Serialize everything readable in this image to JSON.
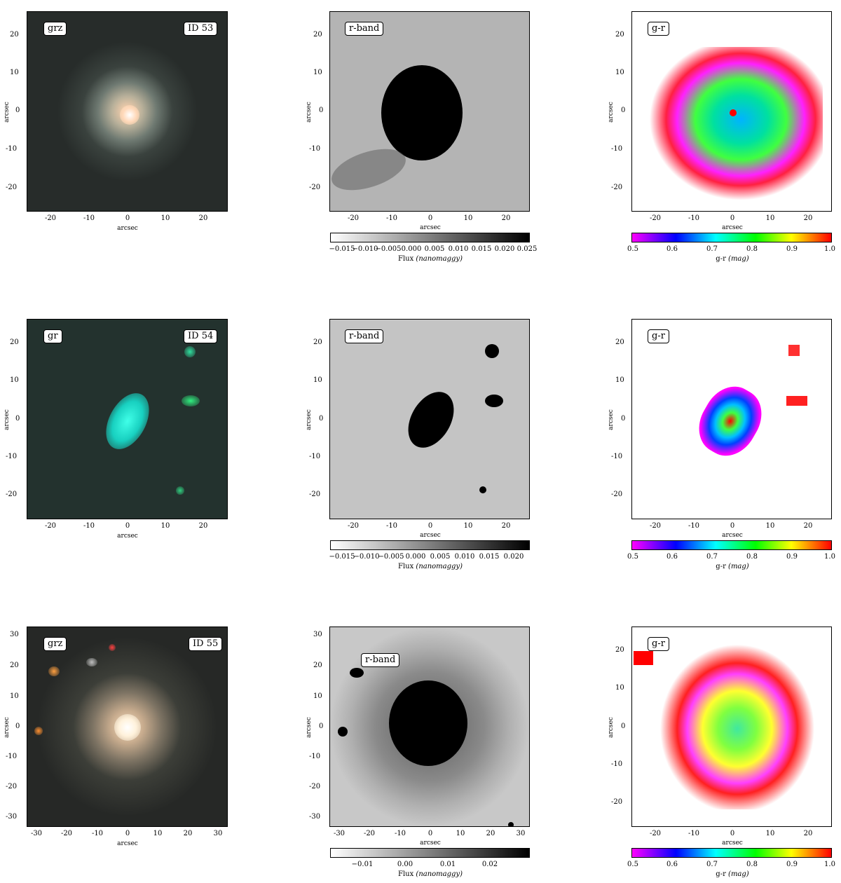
{
  "rows": [
    {
      "id_label": "ID 53",
      "bands_label": "grz",
      "rband_label": "r-band",
      "color_label": "g-r",
      "axis_label": "arcsec",
      "ticks": [
        "-20",
        "-10",
        "0",
        "10",
        "20"
      ],
      "flux_ticks": [
        "−0.015",
        "−0.010",
        "−0.005",
        "0.000",
        "0.005",
        "0.010",
        "0.015",
        "0.020",
        "0.025"
      ],
      "flux_label": "Flux",
      "flux_unit": "(nanomaggy)",
      "gr_ticks": [
        "0.5",
        "0.6",
        "0.7",
        "0.8",
        "0.9",
        "1.0"
      ],
      "gr_label": "g-r",
      "gr_unit": "(mag)"
    },
    {
      "id_label": "ID 54",
      "bands_label": "gr",
      "rband_label": "r-band",
      "color_label": "g-r",
      "axis_label": "arcsec",
      "ticks": [
        "-20",
        "-10",
        "0",
        "10",
        "20"
      ],
      "flux_ticks": [
        "−0.015",
        "−0.010",
        "−0.005",
        "0.000",
        "0.005",
        "0.010",
        "0.015",
        "0.020"
      ],
      "flux_label": "Flux",
      "flux_unit": "(nanomaggy)",
      "gr_ticks": [
        "0.5",
        "0.6",
        "0.7",
        "0.8",
        "0.9",
        "1.0"
      ],
      "gr_label": "g-r",
      "gr_unit": "(mag)"
    },
    {
      "id_label": "ID 55",
      "bands_label": "grz",
      "rband_label": "r-band",
      "color_label": "g-r",
      "axis_label": "arcsec",
      "ticks_wide": [
        "-30",
        "-20",
        "-10",
        "0",
        "10",
        "20",
        "30"
      ],
      "ticks": [
        "-20",
        "-10",
        "0",
        "10",
        "20"
      ],
      "flux_ticks": [
        "−0.01",
        "0.00",
        "0.01",
        "0.02"
      ],
      "flux_label": "Flux",
      "flux_unit": "(nanomaggy)",
      "gr_ticks": [
        "0.5",
        "0.6",
        "0.7",
        "0.8",
        "0.9",
        "1.0"
      ],
      "gr_label": "g-r",
      "gr_unit": "(mag)"
    }
  ]
}
